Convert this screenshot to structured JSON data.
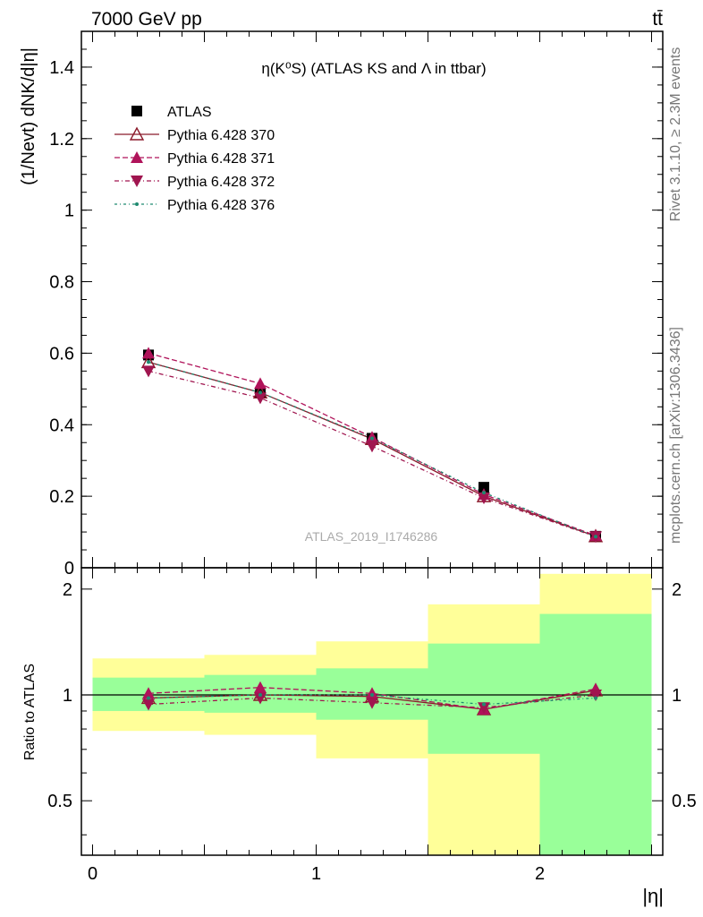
{
  "header": {
    "left": "7000 GeV pp",
    "right": "tt̄"
  },
  "side_labels": {
    "rivet": "Rivet 3.1.10, ≥ 2.3M events",
    "mcplots": "mcplots.cern.ch [arXiv:1306.3436]"
  },
  "watermark": "ATLAS_2019_I1746286",
  "colors": {
    "atlas": "#000000",
    "p370": "#8b1a2b",
    "p371": "#b0135a",
    "p372": "#a0154f",
    "p376": "#1f8a70",
    "band_inner": "#99ff99",
    "band_outer": "#ffff99"
  },
  "chart_data": [
    {
      "type": "line",
      "title": "η(K⁰S) (ATLAS KS and Λ in ttbar)",
      "ylabel": "(1/Nevt) dNK/d|η|",
      "xlim": [
        -0.05,
        2.55
      ],
      "ylim": [
        0,
        1.5
      ],
      "yticks": [
        "0",
        "0.2",
        "0.4",
        "0.6",
        "0.8",
        "1",
        "1.2",
        "1.4"
      ],
      "x": [
        0.25,
        0.75,
        1.25,
        1.75,
        2.25
      ],
      "series": [
        {
          "name": "ATLAS",
          "marker": "square",
          "values": [
            0.595,
            0.49,
            0.362,
            0.225,
            0.088
          ]
        },
        {
          "name": "Pythia 6.428 370",
          "marker": "open-triangle-up",
          "values": [
            0.575,
            0.49,
            0.36,
            0.2,
            0.088
          ]
        },
        {
          "name": "Pythia 6.428 371",
          "marker": "triangle-up",
          "values": [
            0.6,
            0.515,
            0.365,
            0.205,
            0.09
          ]
        },
        {
          "name": "Pythia 6.428 372",
          "marker": "triangle-down",
          "values": [
            0.55,
            0.475,
            0.34,
            0.195,
            0.087
          ]
        },
        {
          "name": "Pythia 6.428 376",
          "marker": "dot",
          "values": [
            0.575,
            0.49,
            0.362,
            0.21,
            0.087
          ]
        }
      ]
    },
    {
      "type": "line",
      "ylabel": "Ratio to ATLAS",
      "xlabel": "|η|",
      "xlim": [
        -0.05,
        2.55
      ],
      "ylim": [
        0.35,
        2.3
      ],
      "yticks": [
        "0.5",
        "1",
        "2"
      ],
      "xticks": [
        "0",
        "1",
        "2"
      ],
      "bins": [
        [
          0,
          0.5
        ],
        [
          0.5,
          1
        ],
        [
          1,
          1.5
        ],
        [
          1.5,
          2
        ],
        [
          2,
          2.5
        ]
      ],
      "band_inner": [
        [
          0.9,
          1.12
        ],
        [
          0.89,
          1.14
        ],
        [
          0.85,
          1.19
        ],
        [
          0.68,
          1.4
        ],
        [
          0.35,
          1.7
        ]
      ],
      "band_outer": [
        [
          0.79,
          1.27
        ],
        [
          0.77,
          1.3
        ],
        [
          0.66,
          1.42
        ],
        [
          0.35,
          1.81
        ],
        [
          0.35,
          2.21
        ]
      ],
      "x": [
        0.25,
        0.75,
        1.25,
        1.75,
        2.25
      ],
      "series": [
        {
          "name": "Pythia 6.428 370",
          "values": [
            0.98,
            1.0,
            0.99,
            0.91,
            1.03
          ]
        },
        {
          "name": "Pythia 6.428 371",
          "values": [
            1.01,
            1.05,
            1.01,
            0.91,
            1.04
          ]
        },
        {
          "name": "Pythia 6.428 372",
          "values": [
            0.94,
            0.98,
            0.95,
            0.92,
            1.0
          ]
        },
        {
          "name": "Pythia 6.428 376",
          "values": [
            0.98,
            1.0,
            1.0,
            0.94,
            0.98
          ]
        }
      ]
    }
  ]
}
